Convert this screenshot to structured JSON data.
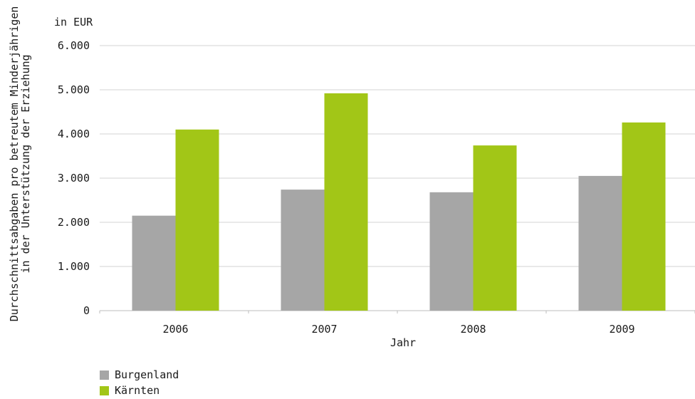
{
  "chart_data": {
    "type": "bar",
    "unit_label": "in EUR",
    "ylabel": "Durchschnittsabgaben pro betreutem Minderjährigen in der Unterstützung der Erziehung",
    "ylabel_lines": [
      "Durchschnittsabgaben pro betreutem Minderjährigen",
      "in der Unterstützung der Erziehung"
    ],
    "xlabel": "Jahr",
    "categories": [
      "2006",
      "2007",
      "2008",
      "2009"
    ],
    "ylim": [
      0,
      6000
    ],
    "yticks": [
      0,
      1000,
      2000,
      3000,
      4000,
      5000,
      6000
    ],
    "ytick_labels": [
      "0",
      "1.000",
      "2.000",
      "3.000",
      "4.000",
      "5.000",
      "6.000"
    ],
    "grid": true,
    "legend_position": "bottom-left",
    "series": [
      {
        "name": "Burgenland",
        "color": "#a6a6a6",
        "values": [
          2150,
          2740,
          2680,
          3050
        ]
      },
      {
        "name": "Kärnten",
        "color": "#a2c617",
        "values": [
          4100,
          4920,
          3740,
          4260
        ]
      }
    ]
  }
}
